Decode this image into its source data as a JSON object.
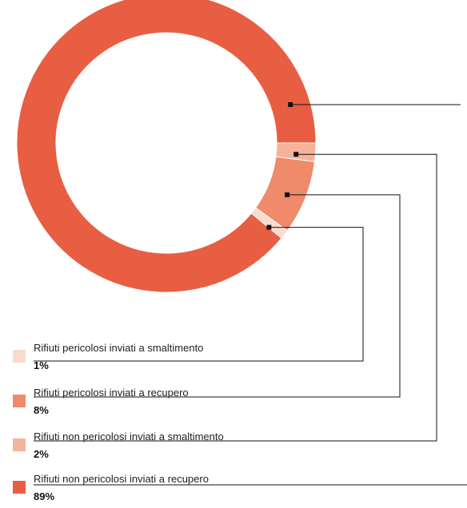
{
  "chart_data": {
    "type": "pie",
    "series": [
      {
        "label": "Rifiuti non pericolosi inviati a recupero",
        "value": 89,
        "value_label": "89%",
        "color": "#e85e43"
      },
      {
        "label": "Rifiuti non pericolosi inviati a smaltimento",
        "value": 2,
        "value_label": "2%",
        "color": "#f4b49b"
      },
      {
        "label": "Rifiuti pericolosi inviati a recupero",
        "value": 8,
        "value_label": "8%",
        "color": "#ef8a6b"
      },
      {
        "label": "Rifiuti pericolosi inviati a smaltimento",
        "value": 1,
        "value_label": "1%",
        "color": "#fadbcd"
      }
    ]
  }
}
